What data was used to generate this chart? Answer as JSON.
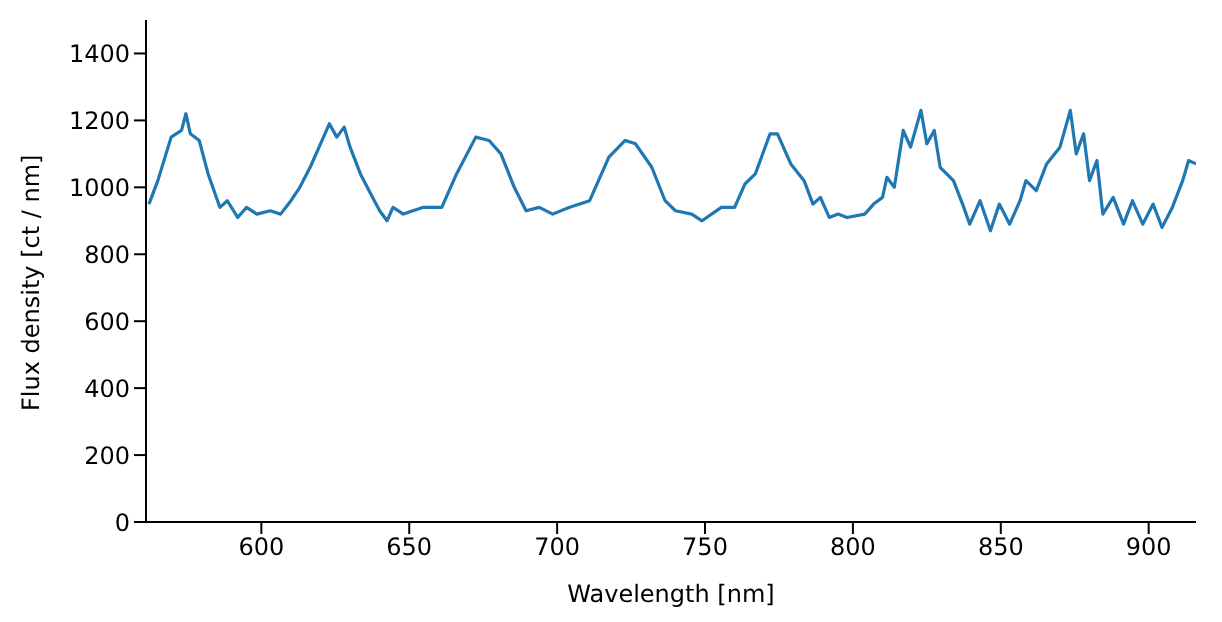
{
  "chart_data": {
    "type": "line",
    "xlabel": "Wavelength [nm]",
    "ylabel": "Flux density [ct / nm]",
    "xlim": [
      561,
      916
    ],
    "ylim": [
      0,
      1500
    ],
    "xticks": [
      600,
      650,
      700,
      750,
      800,
      850,
      900
    ],
    "yticks": [
      0,
      200,
      400,
      600,
      800,
      1000,
      1200,
      1400
    ],
    "grid": false,
    "legend": false,
    "marker": "none",
    "line_style": "solid",
    "series": [
      {
        "color": "#1f77b4",
        "x": [
          562,
          565,
          569.5,
          573,
          574.5,
          576,
          579,
          582,
          584,
          586,
          588.5,
          592,
          595,
          598.5,
          603,
          606.5,
          610,
          613,
          616.5,
          620,
          623,
          625.5,
          628,
          630,
          633.5,
          637,
          640,
          642.5,
          644.5,
          648,
          654.5,
          661,
          666,
          672.5,
          677,
          681,
          685.5,
          689.5,
          694,
          698.5,
          704,
          711,
          717.5,
          723,
          726.5,
          732,
          736.5,
          740,
          745.5,
          749,
          755.5,
          760,
          763.5,
          767,
          772,
          774.5,
          779,
          783.5,
          786.5,
          789,
          792,
          795,
          798,
          804,
          807,
          810,
          811.5,
          814,
          817,
          819.5,
          823,
          825,
          827.5,
          829.5,
          834,
          837.5,
          839.5,
          843,
          846.5,
          849.5,
          853,
          856.5,
          858.5,
          862,
          865.5,
          870,
          873.5,
          875.5,
          878,
          880,
          882.5,
          884.5,
          888,
          891.5,
          894.5,
          898,
          901.5,
          904.5,
          908,
          911.5,
          913.5,
          916
        ],
        "values": [
          950,
          1020,
          1150,
          1170,
          1220,
          1160,
          1140,
          1040,
          990,
          940,
          960,
          910,
          940,
          920,
          930,
          920,
          960,
          1000,
          1060,
          1130,
          1190,
          1150,
          1180,
          1120,
          1040,
          980,
          930,
          900,
          940,
          920,
          940,
          940,
          1040,
          1150,
          1140,
          1100,
          1000,
          930,
          940,
          920,
          940,
          960,
          1090,
          1140,
          1130,
          1060,
          960,
          930,
          920,
          900,
          940,
          940,
          1010,
          1040,
          1160,
          1160,
          1070,
          1020,
          950,
          970,
          910,
          920,
          910,
          920,
          950,
          970,
          1030,
          1000,
          1170,
          1120,
          1230,
          1130,
          1170,
          1060,
          1020,
          940,
          890,
          960,
          870,
          950,
          890,
          960,
          1020,
          990,
          1070,
          1120,
          1230,
          1100,
          1160,
          1020,
          1080,
          920,
          970,
          890,
          960,
          890,
          950,
          880,
          940,
          1020,
          1080,
          1070
        ]
      }
    ]
  }
}
